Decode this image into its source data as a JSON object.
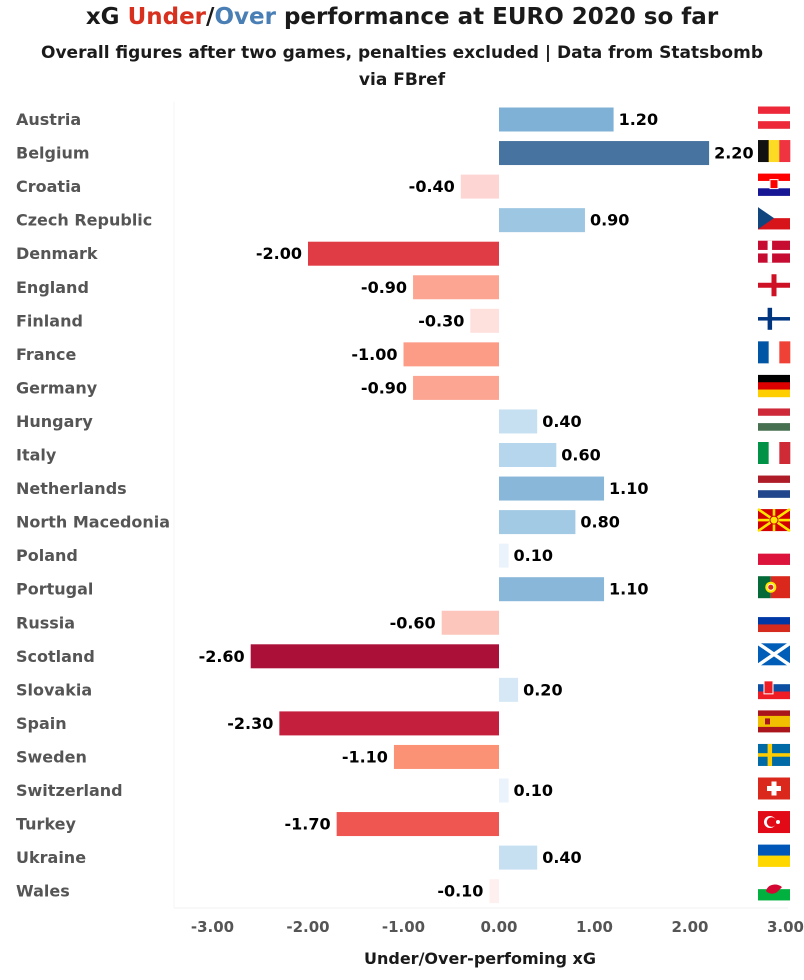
{
  "header": {
    "title_prefix": "xG ",
    "title_under": "Under",
    "title_sep": "/",
    "title_over": "Over",
    "title_suffix": " performance at EURO 2020 so far",
    "subtitle": "Overall figures after two games, penalties excluded | Data from Statsbomb via FBref"
  },
  "chart_data": {
    "type": "bar",
    "orientation": "horizontal",
    "title": "xG Under/Over performance at EURO 2020 so far",
    "subtitle": "Overall figures after two games, penalties excluded | Data from Statsbomb via FBref",
    "xlabel": "Under/Over-perfoming xG",
    "ylabel": "",
    "xlim": [
      -3.3,
      3.0
    ],
    "xticks": [
      -3.0,
      -2.0,
      -1.0,
      0.0,
      1.0,
      2.0,
      3.0
    ],
    "xtick_labels": [
      "-3.00",
      "-2.00",
      "-1.00",
      "0.00",
      "1.00",
      "2.00",
      "3.00"
    ],
    "grid": false,
    "categories": [
      "Austria",
      "Belgium",
      "Croatia",
      "Czech Republic",
      "Denmark",
      "England",
      "Finland",
      "France",
      "Germany",
      "Hungary",
      "Italy",
      "Netherlands",
      "North Macedonia",
      "Poland",
      "Portugal",
      "Russia",
      "Scotland",
      "Slovakia",
      "Spain",
      "Sweden",
      "Switzerland",
      "Turkey",
      "Ukraine",
      "Wales"
    ],
    "values": [
      1.2,
      2.2,
      -0.4,
      0.9,
      -2.0,
      -0.9,
      -0.3,
      -1.0,
      -0.9,
      0.4,
      0.6,
      1.1,
      0.8,
      0.1,
      1.1,
      -0.6,
      -2.6,
      0.2,
      -2.3,
      -1.1,
      0.1,
      -1.7,
      0.4,
      -0.1
    ],
    "value_labels": [
      "1.20",
      "2.20",
      "-0.40",
      "0.90",
      "-2.00",
      "-0.90",
      "-0.30",
      "-1.00",
      "-0.90",
      "0.40",
      "0.60",
      "1.10",
      "0.80",
      "0.10",
      "1.10",
      "-0.60",
      "-2.60",
      "0.20",
      "-2.30",
      "-1.10",
      "0.10",
      "-1.70",
      "0.40",
      "-0.10"
    ],
    "colors": [
      "#7fb0d6",
      "#46739f",
      "#fdd6d4",
      "#9cc6e2",
      "#e03c45",
      "#fca593",
      "#fee0dd",
      "#fc9c87",
      "#fca593",
      "#c6e0f2",
      "#b5d6ec",
      "#88b7d9",
      "#a3cae5",
      "#eaf3fb",
      "#88b7d9",
      "#fcc6bc",
      "#aa1038",
      "#d6e8f6",
      "#c41f3c",
      "#fb9275",
      "#eaf3fb",
      "#ef5651",
      "#c6e0f2",
      "#fff0f0"
    ],
    "flags": [
      "austria-flag",
      "belgium-flag",
      "croatia-flag",
      "czech-republic-flag",
      "denmark-flag",
      "england-flag",
      "finland-flag",
      "france-flag",
      "germany-flag",
      "hungary-flag",
      "italy-flag",
      "netherlands-flag",
      "north-macedonia-flag",
      "poland-flag",
      "portugal-flag",
      "russia-flag",
      "scotland-flag",
      "slovakia-flag",
      "spain-flag",
      "sweden-flag",
      "switzerland-flag",
      "turkey-flag",
      "ukraine-flag",
      "wales-flag"
    ]
  }
}
